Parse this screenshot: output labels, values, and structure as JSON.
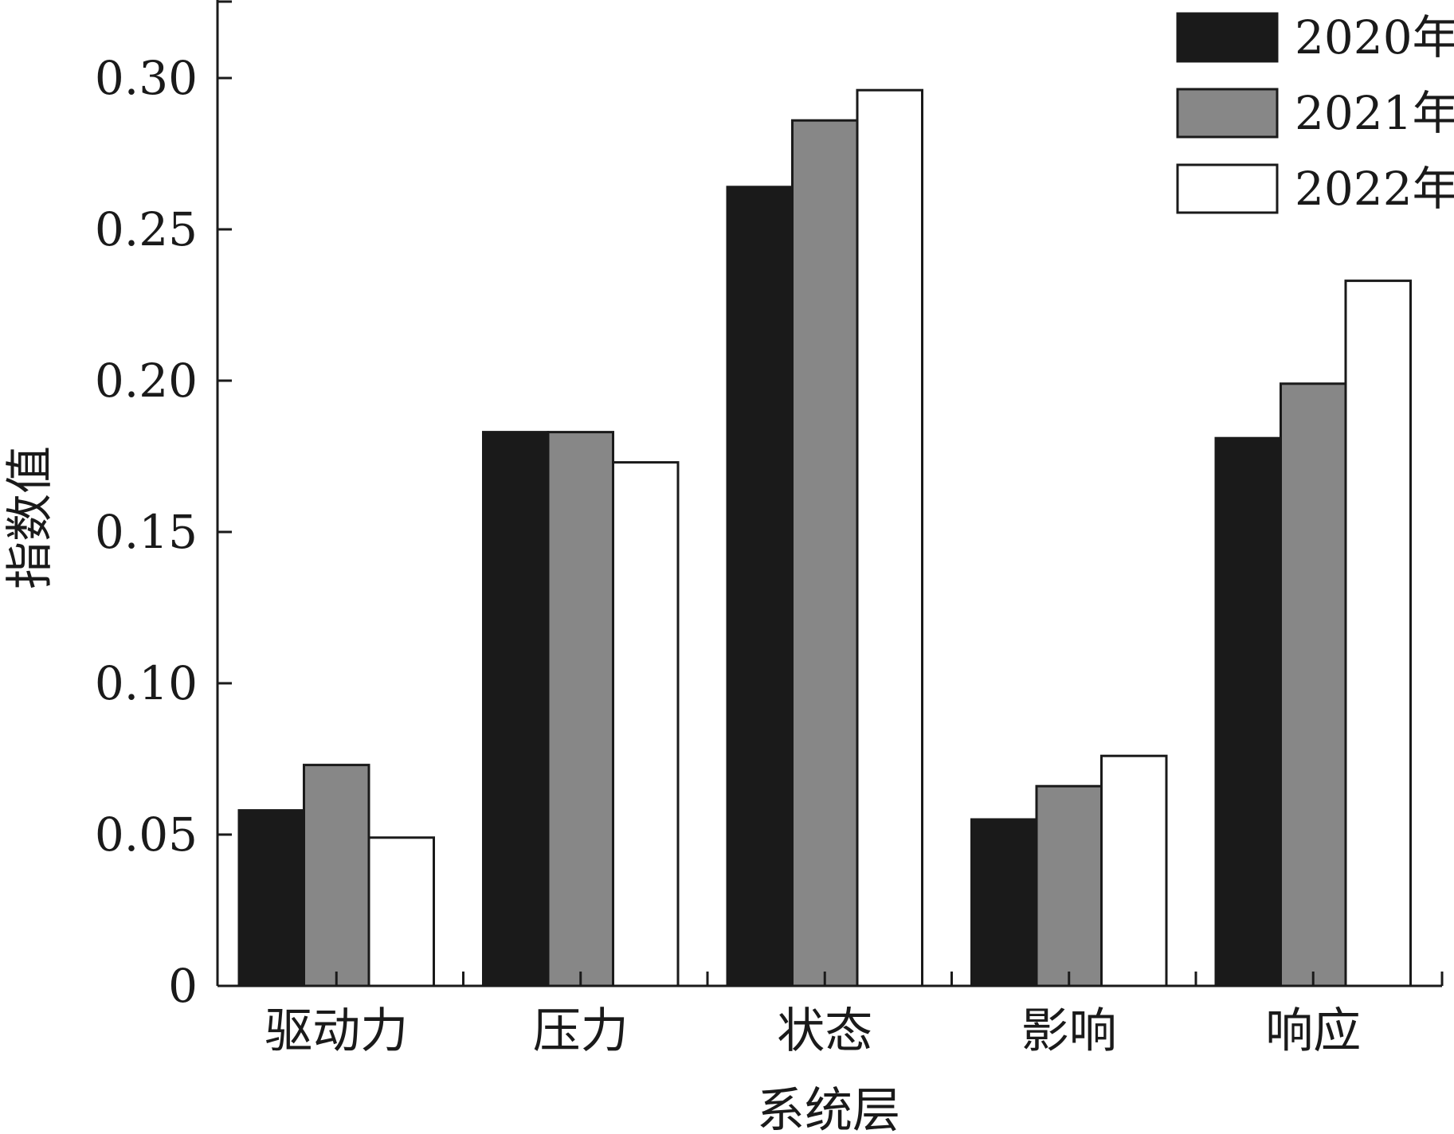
{
  "chart_data": {
    "type": "bar",
    "title": "",
    "xlabel": "系统层",
    "ylabel": "指数值",
    "categories": [
      "驱动力",
      "压力",
      "状态",
      "影响",
      "响应"
    ],
    "series": [
      {
        "name": "2020年",
        "color": "#1a1a1a",
        "values": [
          0.058,
          0.183,
          0.264,
          0.055,
          0.181
        ]
      },
      {
        "name": "2021年",
        "color": "#878787",
        "values": [
          0.073,
          0.183,
          0.286,
          0.066,
          0.199
        ]
      },
      {
        "name": "2022年",
        "color": "#ffffff",
        "values": [
          0.049,
          0.173,
          0.296,
          0.076,
          0.233
        ]
      }
    ],
    "ylim": [
      0,
      0.3
    ],
    "yticks": [
      "0",
      "0.05",
      "0.10",
      "0.15",
      "0.20",
      "0.25",
      "0.30"
    ],
    "ytick_values": [
      0,
      0.05,
      0.1,
      0.15,
      0.2,
      0.25,
      0.3
    ],
    "grid": false,
    "legend_position": "top-right"
  }
}
